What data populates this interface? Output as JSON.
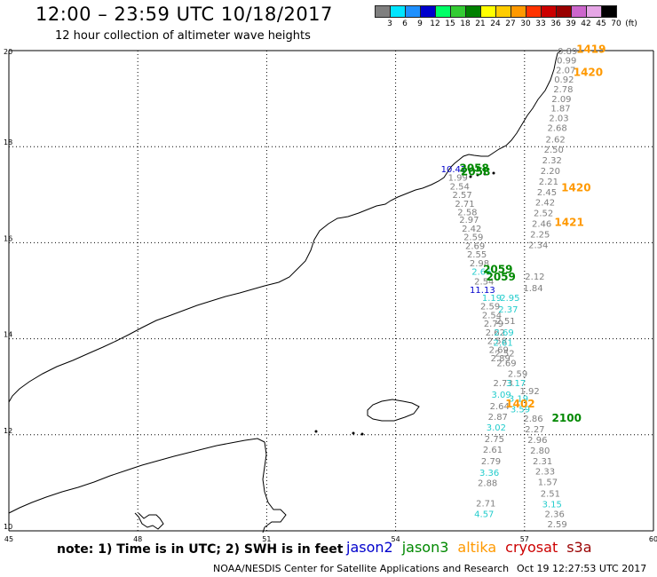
{
  "title": "12:00 – 23:59 UTC 10/18/2017",
  "subtitle": "12 hour collection of altimeter wave heights",
  "legend": {
    "colors": [
      "#7f7f7f",
      "#00e5ff",
      "#1e90ff",
      "#0000cd",
      "#00ff66",
      "#33cc33",
      "#008000",
      "#ffff00",
      "#ffcc00",
      "#ff9900",
      "#ff3300",
      "#cc0000",
      "#990000",
      "#cc66cc",
      "#e6a6e6",
      "#000000"
    ],
    "labels": [
      "3",
      "6",
      "9",
      "12",
      "15",
      "18",
      "21",
      "24",
      "27",
      "30",
      "33",
      "36",
      "39",
      "42",
      "45",
      "70",
      "(ft)"
    ]
  },
  "axes": {
    "lon_ticks": [
      "45",
      "48",
      "51",
      "54",
      "57",
      "60"
    ],
    "lat_ticks": [
      "10",
      "12",
      "14",
      "16",
      "18",
      "20"
    ]
  },
  "note": "note: 1) Time is in UTC; 2) SWH is in feet",
  "satellites": [
    {
      "name": "jason2",
      "color": "#0000cc"
    },
    {
      "name": "jason3",
      "color": "#008800"
    },
    {
      "name": "altika",
      "color": "#ff9900"
    },
    {
      "name": "cryosat",
      "color": "#cc0000"
    },
    {
      "name": "s3a",
      "color": "#990000"
    }
  ],
  "credit": "NOAA/NESDIS Center for Satellite Applications and Research",
  "timestamp": "Oct 19 12:27:53 UTC 2017",
  "colors": {
    "gray": "#7f7f7f",
    "cyan": "#22cccc",
    "blue": "#0000cc",
    "green": "#008800",
    "orange": "#ff9900"
  },
  "tracks": {
    "east": [
      {
        "v": "0.89",
        "lon": 58.0,
        "lat": 19.93,
        "c": "gray"
      },
      {
        "v": "0.99",
        "lon": 57.98,
        "lat": 19.73,
        "c": "gray"
      },
      {
        "v": "2.07",
        "lon": 57.96,
        "lat": 19.53,
        "c": "gray"
      },
      {
        "v": "0.92",
        "lon": 57.92,
        "lat": 19.33,
        "c": "gray"
      },
      {
        "v": "2.78",
        "lon": 57.9,
        "lat": 19.13,
        "c": "gray"
      },
      {
        "v": "2.09",
        "lon": 57.86,
        "lat": 18.93,
        "c": "gray"
      },
      {
        "v": "1.87",
        "lon": 57.84,
        "lat": 18.73,
        "c": "gray"
      },
      {
        "v": "2.03",
        "lon": 57.8,
        "lat": 18.53,
        "c": "gray"
      },
      {
        "v": "2.68",
        "lon": 57.76,
        "lat": 18.33,
        "c": "gray"
      },
      {
        "v": "2.62",
        "lon": 57.72,
        "lat": 18.09,
        "c": "gray"
      },
      {
        "v": "2.50",
        "lon": 57.68,
        "lat": 17.87,
        "c": "gray"
      },
      {
        "v": "2.32",
        "lon": 57.64,
        "lat": 17.65,
        "c": "gray"
      },
      {
        "v": "2.20",
        "lon": 57.6,
        "lat": 17.43,
        "c": "gray"
      },
      {
        "v": "2.21",
        "lon": 57.56,
        "lat": 17.21,
        "c": "gray"
      },
      {
        "v": "2.45",
        "lon": 57.52,
        "lat": 16.99,
        "c": "gray"
      },
      {
        "v": "2.42",
        "lon": 57.48,
        "lat": 16.77,
        "c": "gray"
      },
      {
        "v": "2.52",
        "lon": 57.44,
        "lat": 16.55,
        "c": "gray"
      },
      {
        "v": "2.46",
        "lon": 57.4,
        "lat": 16.33,
        "c": "gray"
      },
      {
        "v": "2.25",
        "lon": 57.36,
        "lat": 16.11,
        "c": "gray"
      },
      {
        "v": "2.34",
        "lon": 57.32,
        "lat": 15.89,
        "c": "gray"
      },
      {
        "v": "2.12",
        "lon": 57.24,
        "lat": 15.23,
        "c": "gray"
      },
      {
        "v": "1.84",
        "lon": 57.2,
        "lat": 14.99,
        "c": "gray"
      },
      {
        "v": "1.92",
        "lon": 57.12,
        "lat": 12.85,
        "c": "gray"
      },
      {
        "v": "2.86",
        "lon": 57.2,
        "lat": 12.27,
        "c": "gray"
      },
      {
        "v": "2.27",
        "lon": 57.24,
        "lat": 12.05,
        "c": "gray"
      },
      {
        "v": "2.96",
        "lon": 57.3,
        "lat": 11.83,
        "c": "gray"
      },
      {
        "v": "2.80",
        "lon": 57.36,
        "lat": 11.61,
        "c": "gray"
      },
      {
        "v": "2.31",
        "lon": 57.42,
        "lat": 11.39,
        "c": "gray"
      },
      {
        "v": "2.33",
        "lon": 57.48,
        "lat": 11.17,
        "c": "gray"
      },
      {
        "v": "1.57",
        "lon": 57.54,
        "lat": 10.95,
        "c": "gray"
      },
      {
        "v": "2.51",
        "lon": 57.6,
        "lat": 10.71,
        "c": "gray"
      },
      {
        "v": "3.15",
        "lon": 57.64,
        "lat": 10.49,
        "c": "cyan"
      },
      {
        "v": "2.36",
        "lon": 57.7,
        "lat": 10.29,
        "c": "gray"
      },
      {
        "v": "2.59",
        "lon": 57.76,
        "lat": 10.07,
        "c": "gray"
      }
    ],
    "west": [
      {
        "v": "2.87",
        "lon": 56.38,
        "lat": 12.31,
        "c": "gray"
      },
      {
        "v": "3.02",
        "lon": 56.34,
        "lat": 12.09,
        "c": "cyan"
      },
      {
        "v": "2.75",
        "lon": 56.3,
        "lat": 11.85,
        "c": "gray"
      },
      {
        "v": "2.61",
        "lon": 56.26,
        "lat": 11.63,
        "c": "gray"
      },
      {
        "v": "2.79",
        "lon": 56.22,
        "lat": 11.39,
        "c": "gray"
      },
      {
        "v": "3.36",
        "lon": 56.18,
        "lat": 11.15,
        "c": "cyan"
      },
      {
        "v": "2.88",
        "lon": 56.14,
        "lat": 10.93,
        "c": "gray"
      },
      {
        "v": "2.71",
        "lon": 56.1,
        "lat": 10.51,
        "c": "gray"
      },
      {
        "v": "4.57",
        "lon": 56.06,
        "lat": 10.29,
        "c": "cyan"
      },
      {
        "v": "2.64",
        "lon": 56.42,
        "lat": 12.53,
        "c": "gray"
      },
      {
        "v": "3.09",
        "lon": 56.46,
        "lat": 12.77,
        "c": "cyan"
      },
      {
        "v": "2.73",
        "lon": 56.5,
        "lat": 13.01,
        "c": "gray"
      },
      {
        "v": "3.17",
        "lon": 56.8,
        "lat": 13.01,
        "c": "cyan"
      },
      {
        "v": "2.59",
        "lon": 56.84,
        "lat": 13.21,
        "c": "gray"
      }
    ],
    "dense": [
      {
        "v": "1.99",
        "lon": 55.45,
        "lat": 17.29,
        "c": "gray"
      },
      {
        "v": "2.54",
        "lon": 55.49,
        "lat": 17.11,
        "c": "gray"
      },
      {
        "v": "2.57",
        "lon": 55.55,
        "lat": 16.93,
        "c": "gray"
      },
      {
        "v": "2.71",
        "lon": 55.61,
        "lat": 16.75,
        "c": "gray"
      },
      {
        "v": "2.58",
        "lon": 55.67,
        "lat": 16.57,
        "c": "gray"
      },
      {
        "v": "2.97",
        "lon": 55.71,
        "lat": 16.41,
        "c": "gray"
      },
      {
        "v": "2.42",
        "lon": 55.77,
        "lat": 16.23,
        "c": "gray"
      },
      {
        "v": "2.59",
        "lon": 55.81,
        "lat": 16.05,
        "c": "gray"
      },
      {
        "v": "2.69",
        "lon": 55.85,
        "lat": 15.87,
        "c": "gray"
      },
      {
        "v": "2.55",
        "lon": 55.89,
        "lat": 15.69,
        "c": "gray"
      },
      {
        "v": "2.98",
        "lon": 55.95,
        "lat": 15.51,
        "c": "gray"
      },
      {
        "v": "2.66",
        "lon": 56.0,
        "lat": 15.33,
        "c": "cyan"
      },
      {
        "v": "2.54",
        "lon": 56.06,
        "lat": 15.13,
        "c": "gray"
      },
      {
        "v": "1.19",
        "lon": 56.24,
        "lat": 14.79,
        "c": "cyan"
      },
      {
        "v": "2.59",
        "lon": 56.2,
        "lat": 14.61,
        "c": "gray"
      },
      {
        "v": "2.54",
        "lon": 56.24,
        "lat": 14.43,
        "c": "gray"
      },
      {
        "v": "2.79",
        "lon": 56.28,
        "lat": 14.25,
        "c": "gray"
      },
      {
        "v": "2.62",
        "lon": 56.32,
        "lat": 14.07,
        "c": "gray"
      },
      {
        "v": "2.58",
        "lon": 56.36,
        "lat": 13.89,
        "c": "gray"
      },
      {
        "v": "2.69",
        "lon": 56.4,
        "lat": 13.71,
        "c": "gray"
      },
      {
        "v": "2.89",
        "lon": 56.44,
        "lat": 13.53,
        "c": "gray"
      },
      {
        "v": "2.95",
        "lon": 56.66,
        "lat": 14.79,
        "c": "cyan"
      },
      {
        "v": "2.37",
        "lon": 56.62,
        "lat": 14.55,
        "c": "cyan"
      },
      {
        "v": "2.51",
        "lon": 56.56,
        "lat": 14.31,
        "c": "gray"
      },
      {
        "v": "2.69",
        "lon": 56.52,
        "lat": 14.07,
        "c": "cyan"
      },
      {
        "v": "2.61",
        "lon": 56.5,
        "lat": 13.85,
        "c": "cyan"
      },
      {
        "v": "2.52",
        "lon": 56.54,
        "lat": 13.63,
        "c": "gray"
      },
      {
        "v": "2.69",
        "lon": 56.58,
        "lat": 13.43,
        "c": "gray"
      },
      {
        "v": "3.19",
        "lon": 56.86,
        "lat": 12.69,
        "c": "cyan"
      },
      {
        "v": "3.59",
        "lon": 56.9,
        "lat": 12.47,
        "c": "cyan"
      }
    ],
    "blue_labels": [
      {
        "v": "10.47",
        "lon": 55.35,
        "lat": 17.47
      },
      {
        "v": "11.13",
        "lon": 56.02,
        "lat": 14.95
      }
    ],
    "hour_labels": [
      {
        "v": "1419",
        "lon": 58.55,
        "lat": 19.95,
        "c": "orange"
      },
      {
        "v": "1420",
        "lon": 58.48,
        "lat": 19.47,
        "c": "orange"
      },
      {
        "v": "1420",
        "lon": 58.2,
        "lat": 17.07,
        "c": "orange"
      },
      {
        "v": "1421",
        "lon": 58.04,
        "lat": 16.35,
        "c": "orange"
      },
      {
        "v": "2058",
        "lon": 55.83,
        "lat": 17.48,
        "c": "green"
      },
      {
        "v": "2058",
        "lon": 55.86,
        "lat": 17.4,
        "c": "green"
      },
      {
        "v": "2059",
        "lon": 56.38,
        "lat": 15.37,
        "c": "green"
      },
      {
        "v": "2059",
        "lon": 56.45,
        "lat": 15.21,
        "c": "green"
      },
      {
        "v": "1402",
        "lon": 56.9,
        "lat": 12.57,
        "c": "orange"
      },
      {
        "v": "2100",
        "lon": 57.98,
        "lat": 12.27,
        "c": "green"
      }
    ]
  }
}
